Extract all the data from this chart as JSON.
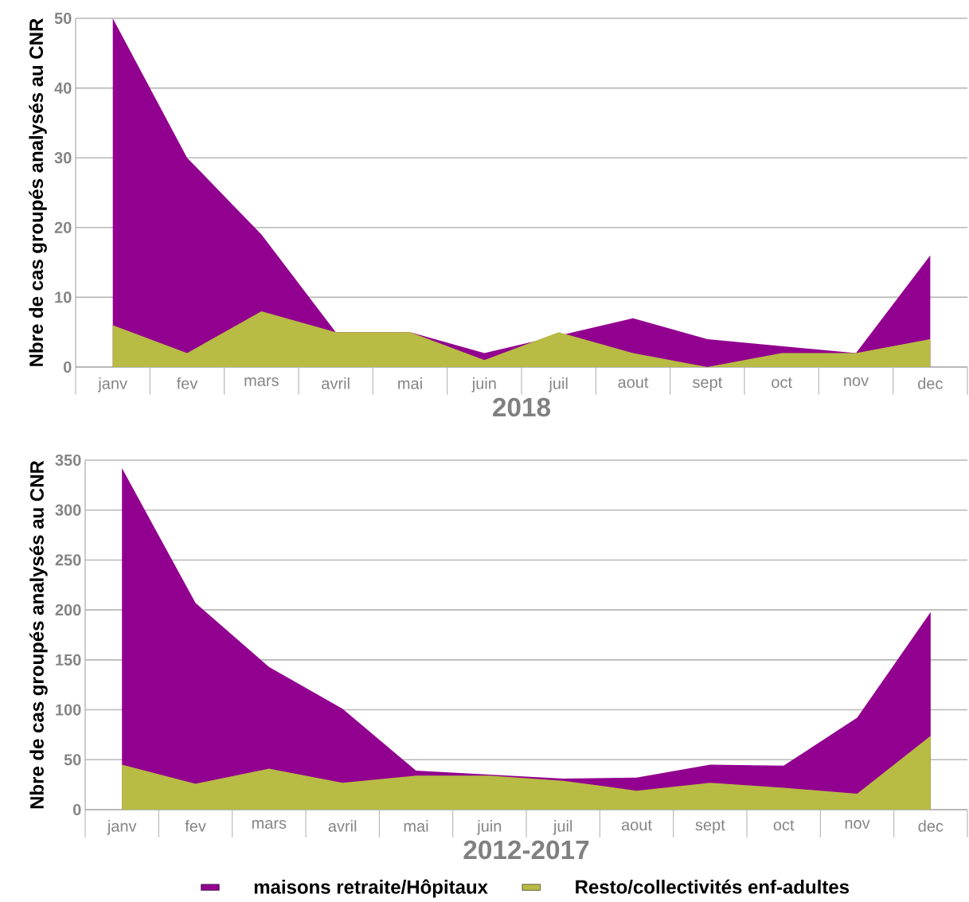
{
  "chart_data": [
    {
      "type": "area",
      "title": "2018",
      "ylabel": "Nbre de cas groupés analysés au CNR",
      "categories": [
        "janv",
        "fev",
        "mars",
        "avril",
        "mai",
        "juin",
        "juil",
        "aout",
        "sept",
        "oct",
        "nov",
        "dec"
      ],
      "series": [
        {
          "color": "#92008f",
          "values": [
            50,
            30,
            19,
            5,
            5,
            2,
            null,
            7,
            4,
            null,
            2,
            16
          ]
        },
        {
          "color": "#b8bb44",
          "values": [
            6,
            2,
            8,
            5,
            5,
            1,
            5,
            2,
            0,
            2,
            2,
            4
          ]
        }
      ],
      "ylim": [
        0,
        50
      ],
      "yticks": [
        0,
        10,
        20,
        30,
        40,
        50
      ],
      "grid": "y"
    },
    {
      "type": "area",
      "title": "2012-2017",
      "ylabel": "Nbre de cas groupés analysés au CNR",
      "categories": [
        "janv",
        "fev",
        "mars",
        "avril",
        "mai",
        "juin",
        "juil",
        "aout",
        "sept",
        "oct",
        "nov",
        "dec"
      ],
      "series": [
        {
          "name": "maisons retraite/Hôpitaux",
          "color": "#92008f",
          "values": [
            342,
            207,
            143,
            101,
            39,
            35,
            31,
            32,
            45,
            44,
            92,
            198
          ]
        },
        {
          "name": "Resto/collectivités enf-adultes",
          "color": "#b8bb44",
          "values": [
            45,
            26,
            41,
            27,
            34,
            34,
            29,
            19,
            27,
            22,
            16,
            74
          ]
        }
      ],
      "ylim": [
        0,
        350
      ],
      "yticks": [
        0,
        50,
        100,
        150,
        200,
        250,
        300,
        350
      ],
      "grid": "y",
      "legend": "bottom"
    }
  ]
}
